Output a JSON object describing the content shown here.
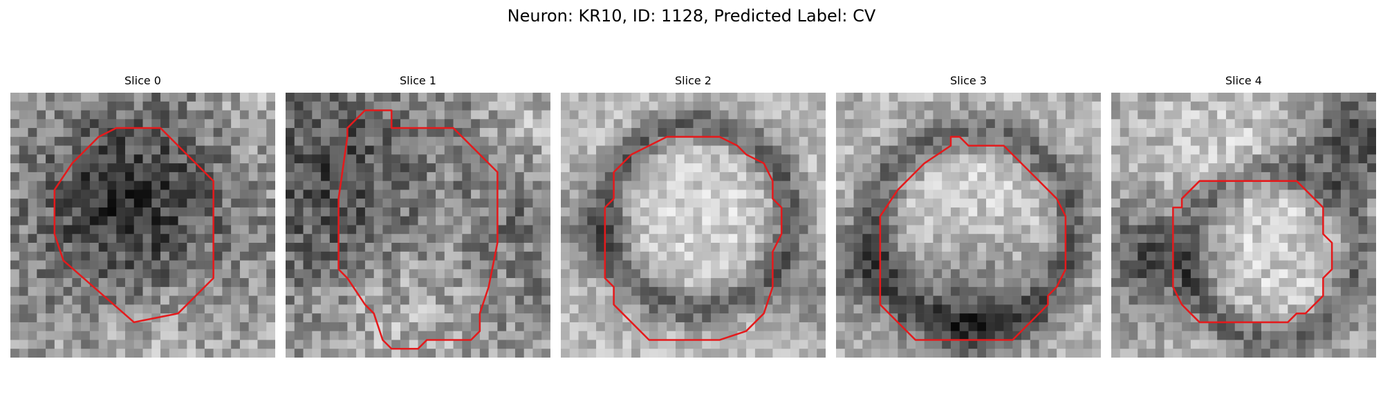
{
  "figure": {
    "title": "Neuron: KR10, ID: 1128, Predicted Label: CV",
    "roi_color": "#e41a1c",
    "colormap": "grayscale",
    "image_grid": 30
  },
  "panels": [
    {
      "title": "Slice 0",
      "image": {
        "base": 0.64,
        "noise": 0.2,
        "blobs": [
          {
            "cx": 13,
            "cy": 12,
            "r": 9,
            "amp": -0.42
          },
          {
            "cx": 27,
            "cy": 2,
            "r": 4,
            "amp": 0.1
          },
          {
            "cx": 16,
            "cy": 27,
            "r": 5,
            "amp": 0.12
          }
        ]
      },
      "roi": [
        [
          12,
          4
        ],
        [
          17,
          4
        ],
        [
          23,
          10
        ],
        [
          23,
          21
        ],
        [
          21,
          23
        ],
        [
          19,
          25
        ],
        [
          14,
          26
        ],
        [
          6,
          19
        ],
        [
          5,
          16
        ],
        [
          5,
          11
        ],
        [
          7,
          8
        ],
        [
          10,
          5
        ]
      ]
    },
    {
      "title": "Slice 1",
      "image": {
        "base": 0.55,
        "noise": 0.2,
        "blobs": [
          {
            "cx": 6,
            "cy": 10,
            "r": 8,
            "amp": -0.28
          },
          {
            "cx": 16,
            "cy": 13,
            "r": 7,
            "amp": 0.08
          },
          {
            "cx": 27,
            "cy": 14,
            "r": 6,
            "amp": -0.12
          },
          {
            "cx": 12,
            "cy": 27,
            "r": 7,
            "amp": 0.16
          },
          {
            "cx": 28,
            "cy": 3,
            "r": 4,
            "amp": 0.18
          }
        ]
      },
      "roi": [
        [
          9,
          2
        ],
        [
          12,
          2
        ],
        [
          12,
          4
        ],
        [
          19,
          4
        ],
        [
          23,
          8
        ],
        [
          24,
          9
        ],
        [
          24,
          17
        ],
        [
          23,
          22
        ],
        [
          22,
          25
        ],
        [
          22,
          27
        ],
        [
          21,
          28
        ],
        [
          16,
          28
        ],
        [
          15,
          29
        ],
        [
          12,
          29
        ],
        [
          11,
          28
        ],
        [
          10,
          25
        ],
        [
          9,
          24
        ],
        [
          7,
          21
        ],
        [
          6,
          20
        ],
        [
          6,
          16
        ],
        [
          6,
          12
        ],
        [
          7,
          5
        ],
        [
          7,
          4
        ]
      ]
    },
    {
      "title": "Slice 2",
      "image": {
        "base": 0.72,
        "noise": 0.14,
        "ring": {
          "cx": 15,
          "cy": 13.5,
          "rin": 9,
          "rout": 12,
          "amp": -0.38
        },
        "blobs": [
          {
            "cx": 15,
            "cy": 13.5,
            "r": 8.5,
            "amp": 0.1
          },
          {
            "cx": 1,
            "cy": 15,
            "r": 4,
            "amp": -0.18
          },
          {
            "cx": 28,
            "cy": 22,
            "r": 3,
            "amp": -0.22
          }
        ]
      },
      "roi": [
        [
          12,
          5
        ],
        [
          16,
          5
        ],
        [
          18,
          5
        ],
        [
          20,
          6
        ],
        [
          21,
          7
        ],
        [
          23,
          8
        ],
        [
          24,
          10
        ],
        [
          24,
          12
        ],
        [
          25,
          13
        ],
        [
          25,
          16
        ],
        [
          24,
          18
        ],
        [
          24,
          22
        ],
        [
          23,
          25
        ],
        [
          22,
          26
        ],
        [
          21,
          27
        ],
        [
          18,
          28
        ],
        [
          10,
          28
        ],
        [
          7,
          25
        ],
        [
          6,
          24
        ],
        [
          6,
          22
        ],
        [
          5,
          21
        ],
        [
          5,
          18
        ],
        [
          5,
          13
        ],
        [
          6,
          12
        ],
        [
          6,
          9
        ],
        [
          8,
          7
        ],
        [
          10,
          6
        ]
      ]
    },
    {
      "title": "Slice 3",
      "image": {
        "base": 0.68,
        "noise": 0.15,
        "ring": {
          "cx": 15,
          "cy": 15,
          "rin": 9.5,
          "rout": 13,
          "amp": -0.34
        },
        "blobs": [
          {
            "cx": 15,
            "cy": 12,
            "r": 8.5,
            "amp": 0.14
          },
          {
            "cx": 15,
            "cy": 23,
            "r": 5,
            "amp": -0.3
          },
          {
            "cx": 1,
            "cy": 20,
            "r": 3.5,
            "amp": -0.25
          }
        ]
      },
      "roi": [
        [
          13,
          5
        ],
        [
          14,
          5
        ],
        [
          15,
          6
        ],
        [
          19,
          6
        ],
        [
          24,
          11
        ],
        [
          25,
          12
        ],
        [
          26,
          14
        ],
        [
          26,
          20
        ],
        [
          25,
          22
        ],
        [
          24,
          23
        ],
        [
          24,
          24
        ],
        [
          20,
          28
        ],
        [
          9,
          28
        ],
        [
          5,
          24
        ],
        [
          5,
          14
        ],
        [
          7,
          11
        ],
        [
          10,
          8
        ],
        [
          13,
          6
        ]
      ]
    },
    {
      "title": "Slice 4",
      "image": {
        "base": 0.66,
        "noise": 0.16,
        "ring": {
          "cx": 18,
          "cy": 18,
          "rin": 8,
          "rout": 11,
          "amp": -0.3
        },
        "blobs": [
          {
            "cx": 17,
            "cy": 17,
            "r": 7,
            "amp": 0.16
          },
          {
            "cx": 4,
            "cy": 18,
            "r": 4,
            "amp": -0.38
          },
          {
            "cx": 27,
            "cy": 5,
            "r": 4,
            "amp": -0.38
          },
          {
            "cx": 12,
            "cy": 4,
            "r": 6,
            "amp": 0.1
          }
        ]
      },
      "roi": [
        [
          10,
          10
        ],
        [
          21,
          10
        ],
        [
          24,
          13
        ],
        [
          24,
          16
        ],
        [
          25,
          17
        ],
        [
          25,
          20
        ],
        [
          24,
          21
        ],
        [
          24,
          23
        ],
        [
          23,
          24
        ],
        [
          22,
          25
        ],
        [
          21,
          25
        ],
        [
          20,
          26
        ],
        [
          10,
          26
        ],
        [
          9,
          25
        ],
        [
          8,
          24
        ],
        [
          7,
          22
        ],
        [
          7,
          13
        ],
        [
          8,
          13
        ],
        [
          8,
          12
        ]
      ]
    }
  ]
}
